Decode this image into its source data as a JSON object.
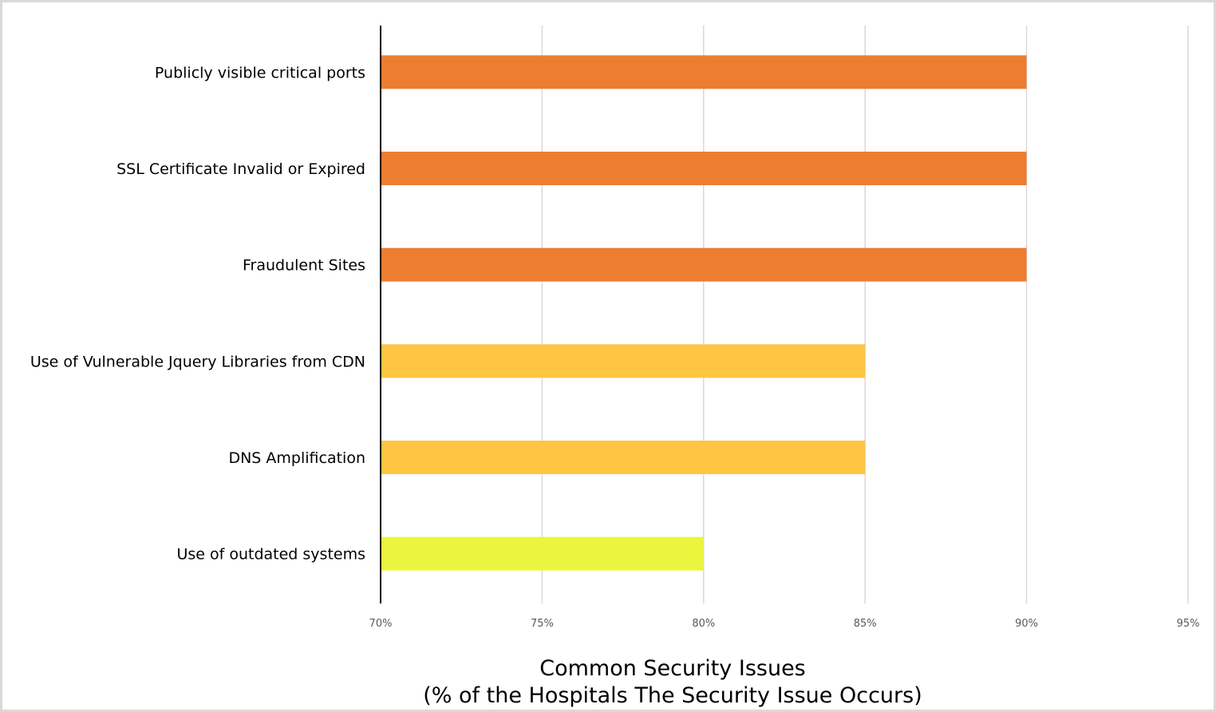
{
  "chart_data": {
    "type": "bar",
    "orientation": "horizontal",
    "title": "Common Security Issues",
    "subtitle": "(% of the Hospitals The Security Issue Occurs)",
    "title_position": "bottom",
    "categories": [
      "Publicly visible critical ports",
      "SSL Certificate Invalid or  Expired",
      "Fraudulent Sites",
      "Use of Vulnerable Jquery Libraries from CDN",
      "DNS Amplification",
      "Use of outdated systems"
    ],
    "values": [
      90,
      90,
      90,
      85,
      85,
      80
    ],
    "bar_colors": [
      "#ED7D31",
      "#ED7D31",
      "#ED7D31",
      "#FFC543",
      "#FFC543",
      "#EBF53D"
    ],
    "xlim": [
      70,
      95
    ],
    "xticks": [
      70,
      75,
      80,
      85,
      90,
      95
    ],
    "xtick_labels": [
      "70%",
      "75%",
      "80%",
      "85%",
      "90%",
      "95%"
    ],
    "unit": "%",
    "grid": "vertical",
    "legend": "none"
  }
}
